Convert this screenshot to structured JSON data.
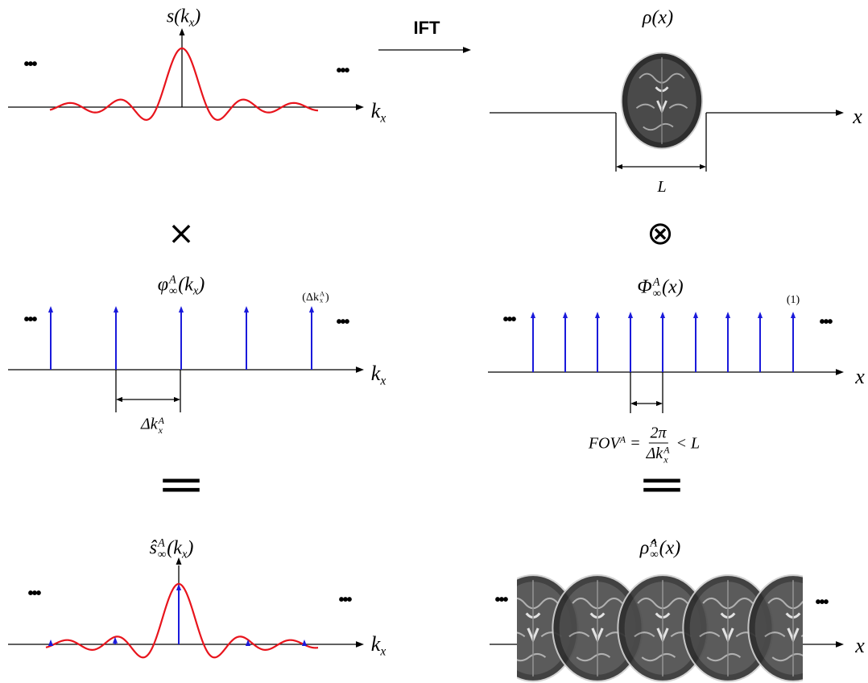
{
  "ift": "IFT",
  "left": {
    "top": {
      "label": [
        {
          "text": "s(k"
        },
        {
          "sub": "x"
        },
        {
          "text": ")"
        }
      ],
      "axis_label": [
        {
          "text": "k"
        },
        {
          "sub": "x"
        }
      ],
      "dots": [
        "•••",
        "•••"
      ]
    },
    "times": "×",
    "middle": {
      "label": [
        {
          "text": "φ"
        },
        {
          "sup": "A",
          "sub": "∞"
        },
        {
          "text": "(k"
        },
        {
          "sub": "x"
        },
        {
          "text": ")"
        }
      ],
      "spike_label": [
        {
          "text": "(Δk"
        },
        {
          "sup": "A",
          "sub": "x"
        },
        {
          "text": ")"
        }
      ],
      "spacing_label": [
        {
          "text": "Δk"
        },
        {
          "sup": "A",
          "sub": "x"
        }
      ],
      "axis_label": [
        {
          "text": "k"
        },
        {
          "sub": "x"
        }
      ],
      "dots": [
        "•••",
        "•••"
      ]
    },
    "equals": "=",
    "bottom": {
      "label": [
        {
          "text": "ŝ"
        },
        {
          "sup": "A",
          "sub": "∞"
        },
        {
          "text": "(k"
        },
        {
          "sub": "x"
        },
        {
          "text": ")"
        }
      ],
      "axis_label": [
        {
          "text": "k"
        },
        {
          "sub": "x"
        }
      ],
      "dots": [
        "•••",
        "•••"
      ]
    }
  },
  "right": {
    "top": {
      "label": [
        {
          "text": "ρ(x)"
        }
      ],
      "axis_label": [
        {
          "text": "x"
        }
      ],
      "width_label": [
        {
          "text": "L"
        }
      ]
    },
    "convolve": "⊗",
    "middle": {
      "label": [
        {
          "text": "Φ"
        },
        {
          "sup": "A",
          "sub": "∞"
        },
        {
          "text": "(x)"
        }
      ],
      "spike_label": [
        {
          "text": "(1)"
        }
      ],
      "fov_label": [
        {
          "text": "FOV"
        },
        {
          "sup": "A"
        },
        {
          "text": " = "
        },
        {
          "frac": {
            "num": [
              {
                "text": "2π"
              }
            ],
            "den": [
              {
                "text": "Δk"
              },
              {
                "sup": "A",
                "sub": "x"
              }
            ]
          }
        },
        {
          "text": " < L"
        }
      ],
      "axis_label": [
        {
          "text": "x"
        }
      ],
      "dots": [
        "•••",
        "•••"
      ]
    },
    "equals": "=",
    "bottom": {
      "label": [
        {
          "text": "ρ̂"
        },
        {
          "sup": "A",
          "sub": "∞"
        },
        {
          "text": "(x)"
        }
      ],
      "axis_label": [
        {
          "text": "x"
        }
      ],
      "dots": [
        "•••",
        "•••"
      ]
    }
  }
}
